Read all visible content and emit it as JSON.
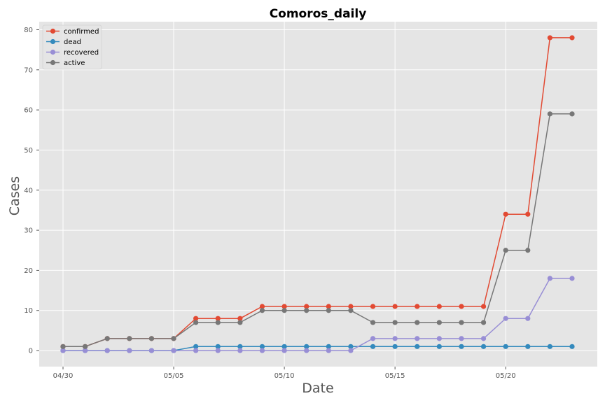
{
  "chart_data": {
    "type": "line",
    "title": "Comoros_daily",
    "xlabel": "Date",
    "ylabel": "Cases",
    "x": [
      "04/30",
      "05/01",
      "05/02",
      "05/03",
      "05/04",
      "05/05",
      "05/06",
      "05/07",
      "05/08",
      "05/09",
      "05/10",
      "05/11",
      "05/12",
      "05/13",
      "05/14",
      "05/15",
      "05/16",
      "05/17",
      "05/18",
      "05/19",
      "05/20",
      "05/21",
      "05/22",
      "05/23"
    ],
    "x_tick_labels": [
      "04/30",
      "05/05",
      "05/10",
      "05/15",
      "05/20"
    ],
    "ylim": [
      -4,
      82
    ],
    "y_ticks": [
      0,
      10,
      20,
      30,
      40,
      50,
      60,
      70,
      80
    ],
    "grid": true,
    "legend_position": "top-left",
    "series": [
      {
        "name": "confirmed",
        "color": "#E24A33",
        "values": [
          1,
          1,
          3,
          3,
          3,
          3,
          8,
          8,
          8,
          11,
          11,
          11,
          11,
          11,
          11,
          11,
          11,
          11,
          11,
          11,
          34,
          34,
          78,
          78
        ]
      },
      {
        "name": "dead",
        "color": "#348ABD",
        "values": [
          0,
          0,
          0,
          0,
          0,
          0,
          1,
          1,
          1,
          1,
          1,
          1,
          1,
          1,
          1,
          1,
          1,
          1,
          1,
          1,
          1,
          1,
          1,
          1
        ]
      },
      {
        "name": "recovered",
        "color": "#988ED5",
        "values": [
          0,
          0,
          0,
          0,
          0,
          0,
          0,
          0,
          0,
          0,
          0,
          0,
          0,
          0,
          3,
          3,
          3,
          3,
          3,
          3,
          8,
          8,
          18,
          18
        ]
      },
      {
        "name": "active",
        "color": "#777777",
        "values": [
          1,
          1,
          3,
          3,
          3,
          3,
          7,
          7,
          7,
          10,
          10,
          10,
          10,
          10,
          7,
          7,
          7,
          7,
          7,
          7,
          25,
          25,
          59,
          59
        ]
      }
    ]
  }
}
